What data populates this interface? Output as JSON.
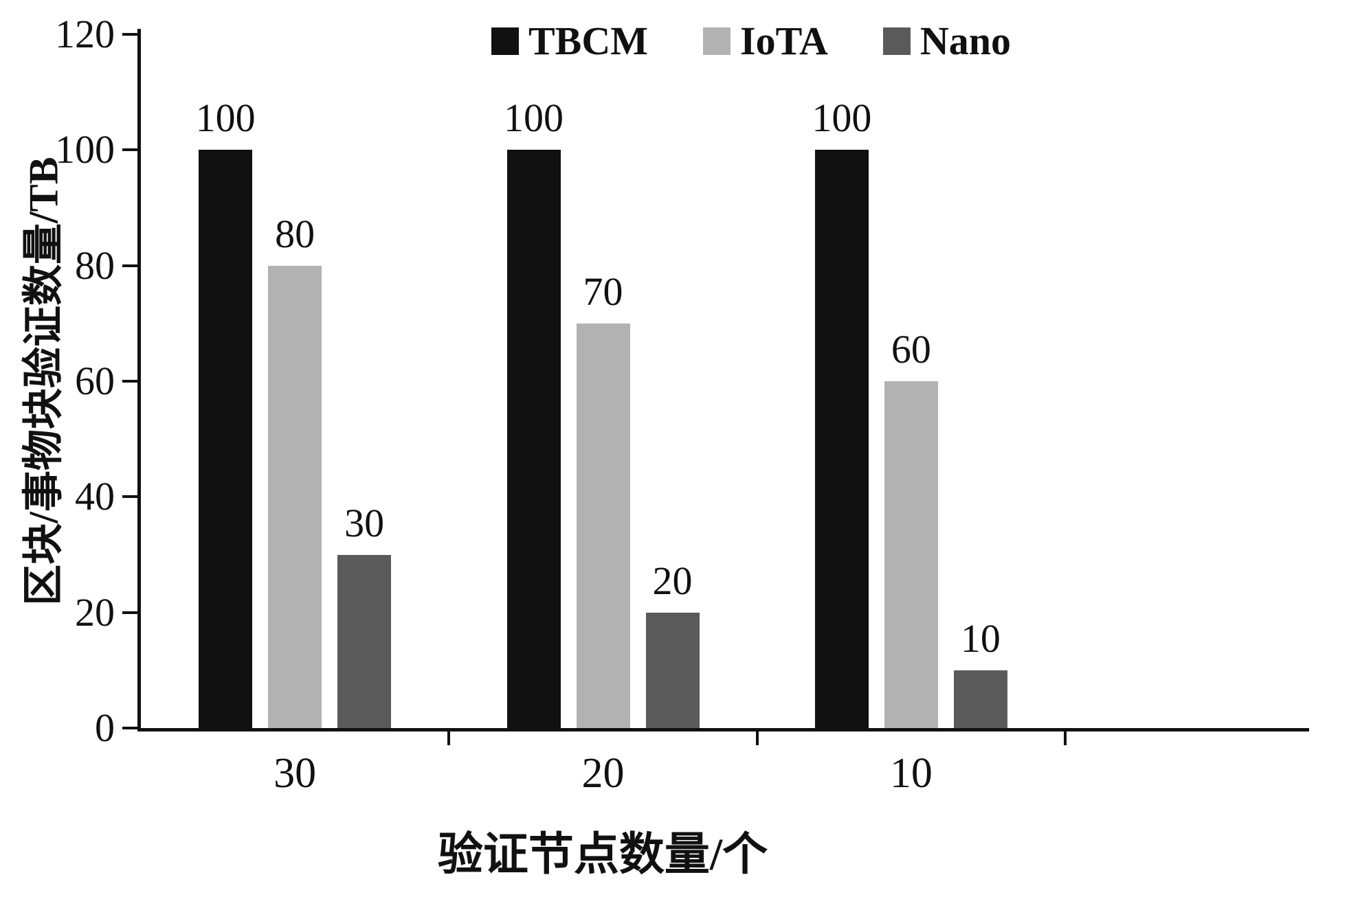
{
  "chart_data": {
    "type": "bar",
    "title": "",
    "categories": [
      "30",
      "20",
      "10"
    ],
    "series": [
      {
        "name": "TBCM",
        "color": "#111111",
        "values": [
          100,
          100,
          100
        ]
      },
      {
        "name": "IoTA",
        "color": "#b2b2b2",
        "values": [
          80,
          70,
          60
        ]
      },
      {
        "name": "Nano",
        "color": "#5a5a5a",
        "values": [
          30,
          20,
          10
        ]
      }
    ],
    "xlabel": "验证节点数量/个",
    "ylabel": "区块/事物块验证数量/TB",
    "ylim": [
      0,
      120
    ],
    "yticks": [
      0,
      20,
      40,
      60,
      80,
      100,
      120
    ],
    "grid": false,
    "legend_position": "top",
    "bar_labels": true
  },
  "axes": {
    "color": "#111111"
  }
}
